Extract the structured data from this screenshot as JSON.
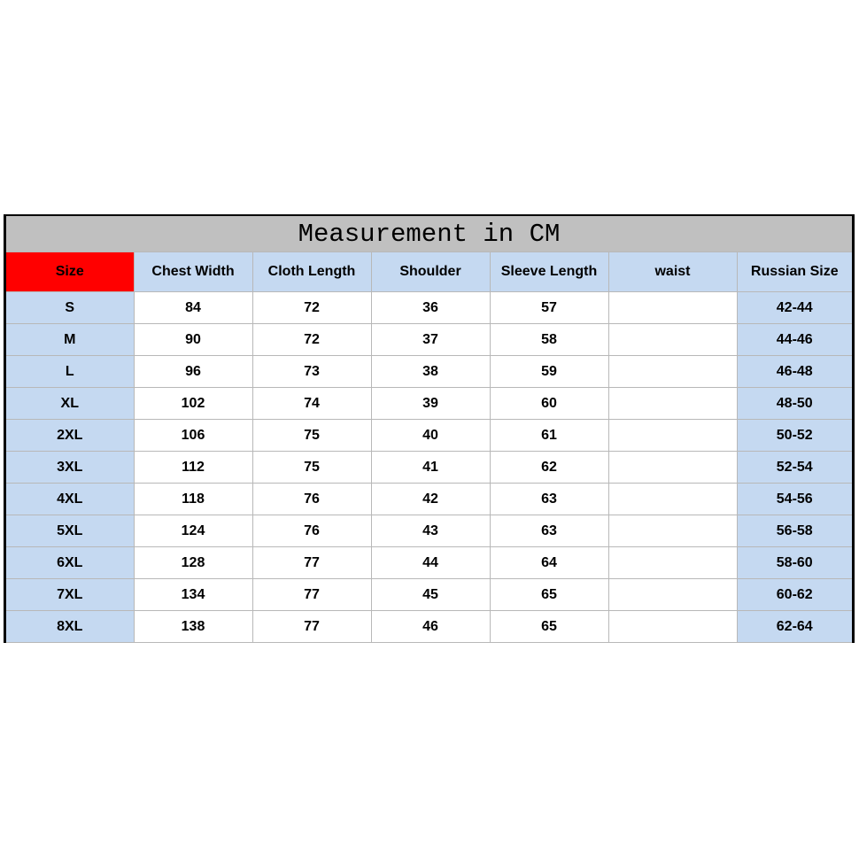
{
  "title": "Measurement in CM",
  "headers": [
    "Size",
    "Chest Width",
    "Cloth Length",
    "Shoulder",
    "Sleeve Length",
    "waist",
    "Russian Size"
  ],
  "rows": [
    [
      "S",
      "84",
      "72",
      "36",
      "57",
      "",
      "42-44"
    ],
    [
      "M",
      "90",
      "72",
      "37",
      "58",
      "",
      "44-46"
    ],
    [
      "L",
      "96",
      "73",
      "38",
      "59",
      "",
      "46-48"
    ],
    [
      "XL",
      "102",
      "74",
      "39",
      "60",
      "",
      "48-50"
    ],
    [
      "2XL",
      "106",
      "75",
      "40",
      "61",
      "",
      "50-52"
    ],
    [
      "3XL",
      "112",
      "75",
      "41",
      "62",
      "",
      "52-54"
    ],
    [
      "4XL",
      "118",
      "76",
      "42",
      "63",
      "",
      "54-56"
    ],
    [
      "5XL",
      "124",
      "76",
      "43",
      "63",
      "",
      "56-58"
    ],
    [
      "6XL",
      "128",
      "77",
      "44",
      "64",
      "",
      "58-60"
    ],
    [
      "7XL",
      "134",
      "77",
      "45",
      "65",
      "",
      "60-62"
    ],
    [
      "8XL",
      "138",
      "77",
      "46",
      "65",
      "",
      "62-64"
    ]
  ],
  "colors": {
    "header_bg": "#c5d9f1",
    "size_header_bg": "#ff0000",
    "title_bg": "#c0c0c0",
    "size_column_bg": "#c5d9f1",
    "russian_column_bg": "#c5d9f1"
  }
}
